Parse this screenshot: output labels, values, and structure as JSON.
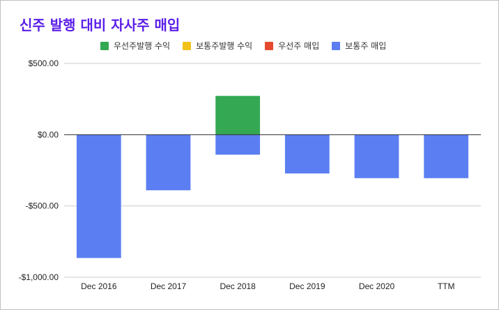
{
  "chart_data": {
    "type": "bar",
    "stacked": true,
    "title": "신주 발행 대비 자사주 매입",
    "categories": [
      "Dec 2016",
      "Dec 2017",
      "Dec 2018",
      "Dec 2019",
      "Dec 2020",
      "TTM"
    ],
    "series": [
      {
        "name": "우선주발행 수익",
        "color": "#34a853",
        "values": [
          0,
          0,
          272,
          0,
          0,
          0
        ]
      },
      {
        "name": "보통주발행 수익",
        "color": "#f2c21b",
        "values": [
          0,
          0,
          0,
          0,
          0,
          0
        ]
      },
      {
        "name": "우선주 매입",
        "color": "#e64a2e",
        "values": [
          0,
          0,
          0,
          0,
          0,
          0
        ]
      },
      {
        "name": "보통주 매입",
        "color": "#5b7ff2",
        "values": [
          -865,
          -390,
          -140,
          -272,
          -305,
          -305
        ]
      }
    ],
    "yticks": [
      500,
      0,
      -500,
      -1000
    ],
    "ytick_labels": [
      "$500.00",
      "$0.00",
      "-$500.00",
      "-$1,000.00"
    ],
    "ylim": [
      -1000,
      500
    ],
    "grid": true,
    "legend_position": "top"
  }
}
